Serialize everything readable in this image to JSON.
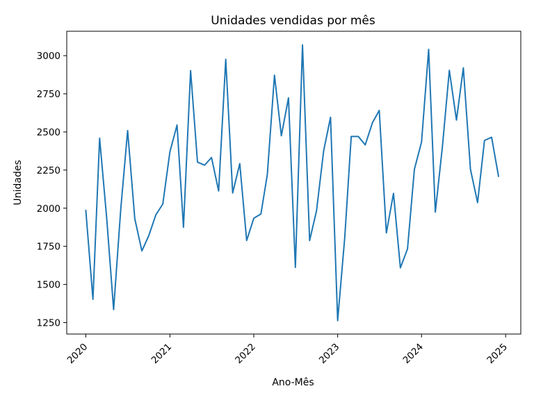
{
  "chart_data": {
    "type": "line",
    "title": "Unidades vendidas por mês",
    "xlabel": "Ano-Mês",
    "ylabel": "Unidades",
    "grid": false,
    "legend": "none",
    "xlim": [
      "2019-10-10",
      "2025-03-08"
    ],
    "ylim": [
      1175,
      3160
    ],
    "x_tick_labels": [
      "2020",
      "2021",
      "2022",
      "2023",
      "2024",
      "2025"
    ],
    "y_tick_labels": [
      "1250",
      "1500",
      "1750",
      "2000",
      "2250",
      "2500",
      "2750",
      "3000"
    ],
    "series": [
      {
        "color": "#1f77b4",
        "x": [
          "2020-01",
          "2020-02",
          "2020-03",
          "2020-04",
          "2020-05",
          "2020-06",
          "2020-07",
          "2020-08",
          "2020-09",
          "2020-10",
          "2020-11",
          "2020-12",
          "2021-01",
          "2021-02",
          "2021-03",
          "2021-04",
          "2021-05",
          "2021-06",
          "2021-07",
          "2021-08",
          "2021-09",
          "2021-10",
          "2021-11",
          "2021-12",
          "2022-01",
          "2022-02",
          "2022-03",
          "2022-04",
          "2022-05",
          "2022-06",
          "2022-07",
          "2022-08",
          "2022-09",
          "2022-10",
          "2022-11",
          "2022-12",
          "2023-01",
          "2023-02",
          "2023-03",
          "2023-04",
          "2023-05",
          "2023-06",
          "2023-07",
          "2023-08",
          "2023-09",
          "2023-10",
          "2023-11",
          "2023-12",
          "2024-01",
          "2024-02",
          "2024-03",
          "2024-04",
          "2024-05",
          "2024-06",
          "2024-07",
          "2024-08",
          "2024-09",
          "2024-10",
          "2024-11",
          "2024-12"
        ],
        "values": [
          1985,
          1403,
          2459,
          1932,
          1335,
          1993,
          2509,
          1932,
          1720,
          1820,
          1957,
          2027,
          2370,
          2545,
          1875,
          2902,
          2302,
          2282,
          2332,
          2113,
          2976,
          2100,
          2292,
          1788,
          1934,
          1962,
          2222,
          2872,
          2475,
          2723,
          1612,
          3070,
          1788,
          1983,
          2375,
          2596,
          1263,
          1810,
          2470,
          2470,
          2415,
          2559,
          2641,
          1838,
          2097,
          1609,
          1733,
          2255,
          2433,
          3041,
          1974,
          2405,
          2904,
          2578,
          2920,
          2254,
          2037,
          2444,
          2465,
          2210
        ]
      }
    ]
  }
}
